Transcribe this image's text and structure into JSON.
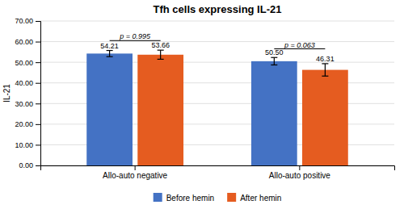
{
  "chart_data": {
    "type": "bar",
    "title": "Tfh cells expressing IL-21",
    "ylabel": "IL-21",
    "categories": [
      "Allo-auto negative",
      "Allo-auto positive"
    ],
    "series": [
      {
        "name": "Before hemin",
        "color": "#4472C4",
        "values": [
          54.21,
          50.5
        ],
        "value_labels": [
          "54.21",
          "50.50"
        ],
        "errors": [
          1.5,
          1.8
        ]
      },
      {
        "name": "After hemin",
        "color": "#E55C20",
        "values": [
          53.66,
          46.31
        ],
        "value_labels": [
          "53.66",
          "46.31"
        ],
        "errors": [
          2.2,
          3.0
        ]
      }
    ],
    "annotations": [
      {
        "text": "p = 0.995",
        "category": "Allo-auto negative",
        "y": 60.5
      },
      {
        "text": "p = 0.063",
        "category": "Allo-auto positive",
        "y": 56.5
      }
    ],
    "ylim": [
      0,
      70
    ],
    "yticks": [
      {
        "value": 0,
        "label": "0.00"
      },
      {
        "value": 10,
        "label": "10.00"
      },
      {
        "value": 20,
        "label": "20.00"
      },
      {
        "value": 30,
        "label": "30.00"
      },
      {
        "value": 40,
        "label": "40.00"
      },
      {
        "value": 50,
        "label": "50.00"
      },
      {
        "value": 60,
        "label": "60.00"
      },
      {
        "value": 70,
        "label": "70.00"
      }
    ],
    "grid": true,
    "data_labels": true,
    "legend": "bottom"
  }
}
